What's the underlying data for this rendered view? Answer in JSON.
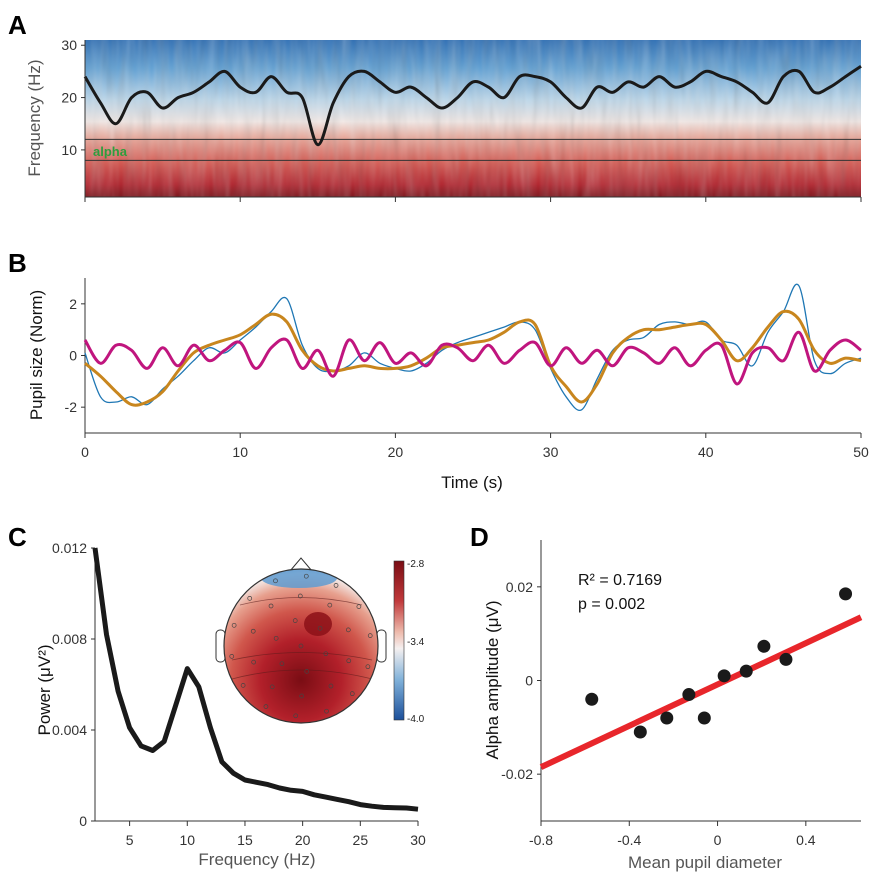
{
  "panels": {
    "a": {
      "letter": "A"
    },
    "b": {
      "letter": "B"
    },
    "c": {
      "letter": "C"
    },
    "d": {
      "letter": "D"
    }
  },
  "colors": {
    "pupil_raw": "#1f77b4",
    "pupil_slow": "#c8861e",
    "pupil_fast": "#c0157e",
    "fit_line": "#e8262b",
    "psd": "#1a1a1a",
    "alpha_label": "#2e9e3e",
    "colorbar_top": "#7a0d14",
    "colorbar_mid": "#f5f0f0",
    "colorbar_bottom": "#1b4f9a"
  },
  "chart_data": [
    {
      "id": "A",
      "type": "heatmap",
      "title": "",
      "ylabel": "Frequency (Hz)",
      "ylim": [
        1,
        31
      ],
      "yticks": [
        "10",
        "20",
        "30"
      ],
      "xlim": [
        0,
        50
      ],
      "band_label": "alpha",
      "band_hz": [
        8,
        12
      ],
      "overlay": "peak frequency trace",
      "peak_trace_hz": {
        "t": [
          0,
          1,
          2,
          3,
          4,
          5,
          6,
          7,
          8,
          9,
          10,
          11,
          12,
          13,
          14,
          15,
          16,
          17,
          18,
          19,
          20,
          21,
          22,
          23,
          24,
          25,
          26,
          27,
          28,
          29,
          30,
          31,
          32,
          33,
          34,
          35,
          36,
          37,
          38,
          39,
          40,
          41,
          42,
          43,
          44,
          45,
          46,
          47,
          48,
          49,
          50
        ],
        "f": [
          24,
          19,
          15,
          20,
          21,
          18,
          20,
          21,
          23,
          25,
          22,
          21,
          24,
          21,
          20,
          11,
          19,
          24,
          25,
          23,
          21,
          22,
          20,
          18,
          20,
          23,
          22,
          20,
          24,
          24,
          23,
          20,
          18,
          22,
          21,
          23,
          22,
          24,
          22,
          23,
          25,
          24,
          23,
          21,
          19,
          24,
          25,
          21,
          22,
          24,
          26
        ]
      }
    },
    {
      "id": "B",
      "type": "line",
      "title": "",
      "xlabel": "Time (s)",
      "ylabel": "Pupil size (Norm)",
      "xlim": [
        0,
        50
      ],
      "ylim": [
        -3,
        3
      ],
      "xticks": [
        "0",
        "10",
        "20",
        "30",
        "40",
        "50"
      ],
      "yticks": [
        "2",
        "0",
        "-2"
      ],
      "x": [
        0,
        1,
        2,
        3,
        4,
        5,
        6,
        7,
        8,
        9,
        10,
        11,
        12,
        13,
        14,
        15,
        16,
        17,
        18,
        19,
        20,
        21,
        22,
        23,
        24,
        25,
        26,
        27,
        28,
        29,
        30,
        31,
        32,
        33,
        34,
        35,
        36,
        37,
        38,
        39,
        40,
        41,
        42,
        43,
        44,
        45,
        46,
        47,
        48,
        49,
        50
      ],
      "series": [
        {
          "color_key": "pupil_raw",
          "values": [
            0.1,
            -1.6,
            -1.8,
            -1.6,
            -1.9,
            -1.3,
            -0.8,
            -0.2,
            0.3,
            0.1,
            0.6,
            1.1,
            1.7,
            2.2,
            0.4,
            -0.5,
            -0.6,
            -0.4,
            0.1,
            -0.3,
            -0.5,
            -0.6,
            -0.3,
            0.2,
            0.5,
            0.7,
            0.9,
            1.1,
            1.3,
            1.0,
            -0.5,
            -1.6,
            -2.1,
            -0.9,
            0.2,
            0.6,
            0.7,
            1.2,
            1.3,
            1.2,
            1.3,
            0.6,
            0.4,
            -0.4,
            0.9,
            1.7,
            2.7,
            -0.2,
            -0.7,
            -0.3,
            -0.1
          ]
        },
        {
          "color_key": "pupil_slow",
          "values": [
            -0.3,
            -0.8,
            -1.4,
            -1.9,
            -1.8,
            -1.4,
            -0.6,
            0.1,
            0.4,
            0.6,
            0.8,
            1.2,
            1.6,
            1.3,
            0.2,
            -0.4,
            -0.6,
            -0.5,
            -0.4,
            -0.5,
            -0.5,
            -0.4,
            -0.1,
            0.3,
            0.4,
            0.5,
            0.6,
            0.9,
            1.3,
            1.2,
            -0.4,
            -1.2,
            -1.8,
            -1.1,
            0.1,
            0.7,
            1.0,
            1.0,
            1.1,
            1.2,
            1.2,
            0.6,
            -0.2,
            0.3,
            1.1,
            1.7,
            1.4,
            0.2,
            -0.3,
            -0.1,
            -0.2
          ]
        },
        {
          "color_key": "pupil_fast",
          "values": [
            0.6,
            -0.3,
            0.4,
            0.2,
            -0.5,
            0.3,
            -0.4,
            0.4,
            -0.2,
            0.2,
            0.5,
            -0.5,
            0.3,
            0.6,
            -0.5,
            0.2,
            -0.8,
            0.6,
            -0.2,
            0.5,
            -0.3,
            0.1,
            -0.4,
            0.4,
            0.3,
            -0.2,
            0.4,
            -0.3,
            0.2,
            0.5,
            -0.4,
            0.3,
            -0.3,
            0.2,
            -0.4,
            0.3,
            0.1,
            -0.3,
            0.3,
            -0.4,
            0.2,
            0.4,
            -1.1,
            0.1,
            0.3,
            -0.2,
            0.9,
            -0.6,
            0.2,
            0.6,
            0.2
          ]
        }
      ]
    },
    {
      "id": "C",
      "type": "line",
      "title": "",
      "xlabel": "Frequency (Hz)",
      "ylabel": "Power (μV²)",
      "xlim": [
        2,
        30
      ],
      "ylim": [
        0,
        0.012
      ],
      "xticks": [
        "5",
        "10",
        "15",
        "20",
        "25",
        "30"
      ],
      "yticks": [
        "0",
        "0.004",
        "0.008",
        "0.012"
      ],
      "x": [
        2,
        3,
        4,
        5,
        6,
        7,
        8,
        9,
        10,
        11,
        12,
        13,
        14,
        15,
        16,
        17,
        18,
        19,
        20,
        21,
        22,
        23,
        24,
        25,
        26,
        27,
        28,
        29,
        30
      ],
      "series": [
        {
          "color_key": "psd",
          "values": [
            0.012,
            0.0082,
            0.0057,
            0.0041,
            0.0033,
            0.0031,
            0.0035,
            0.0051,
            0.0067,
            0.0059,
            0.0041,
            0.0026,
            0.0021,
            0.0018,
            0.0017,
            0.0016,
            0.00145,
            0.00135,
            0.0013,
            0.00115,
            0.00105,
            0.00095,
            0.00085,
            0.00072,
            0.00065,
            0.0006,
            0.00058,
            0.00057,
            0.00052
          ]
        }
      ],
      "inset_topomap": {
        "colorbar_ticks": [
          "-2.8",
          "-3.4",
          "-4.0"
        ],
        "colorbar_range": [
          -4.0,
          -2.8
        ]
      }
    },
    {
      "id": "D",
      "type": "scatter",
      "title": "",
      "xlabel": "Mean pupil diameter",
      "ylabel": "Alpha amplitude (μV)",
      "xlim": [
        -0.8,
        0.65
      ],
      "ylim": [
        -0.03,
        0.03
      ],
      "xticks": [
        "-0.8",
        "-0.4",
        "0",
        "0.4"
      ],
      "yticks": [
        "0.02",
        "0",
        "-0.02"
      ],
      "points": [
        {
          "x": -0.57,
          "y": -0.004
        },
        {
          "x": -0.35,
          "y": -0.011
        },
        {
          "x": -0.23,
          "y": -0.008
        },
        {
          "x": -0.13,
          "y": -0.003
        },
        {
          "x": -0.06,
          "y": -0.008
        },
        {
          "x": 0.03,
          "y": 0.001
        },
        {
          "x": 0.13,
          "y": 0.002
        },
        {
          "x": 0.21,
          "y": 0.0073
        },
        {
          "x": 0.31,
          "y": 0.0045
        },
        {
          "x": 0.58,
          "y": 0.0185
        }
      ],
      "fit": {
        "x": [
          -0.8,
          0.65
        ],
        "y": [
          -0.0185,
          0.0135
        ]
      },
      "annotation_r2": "R² = 0.7169",
      "annotation_p": "p = 0.002"
    }
  ]
}
